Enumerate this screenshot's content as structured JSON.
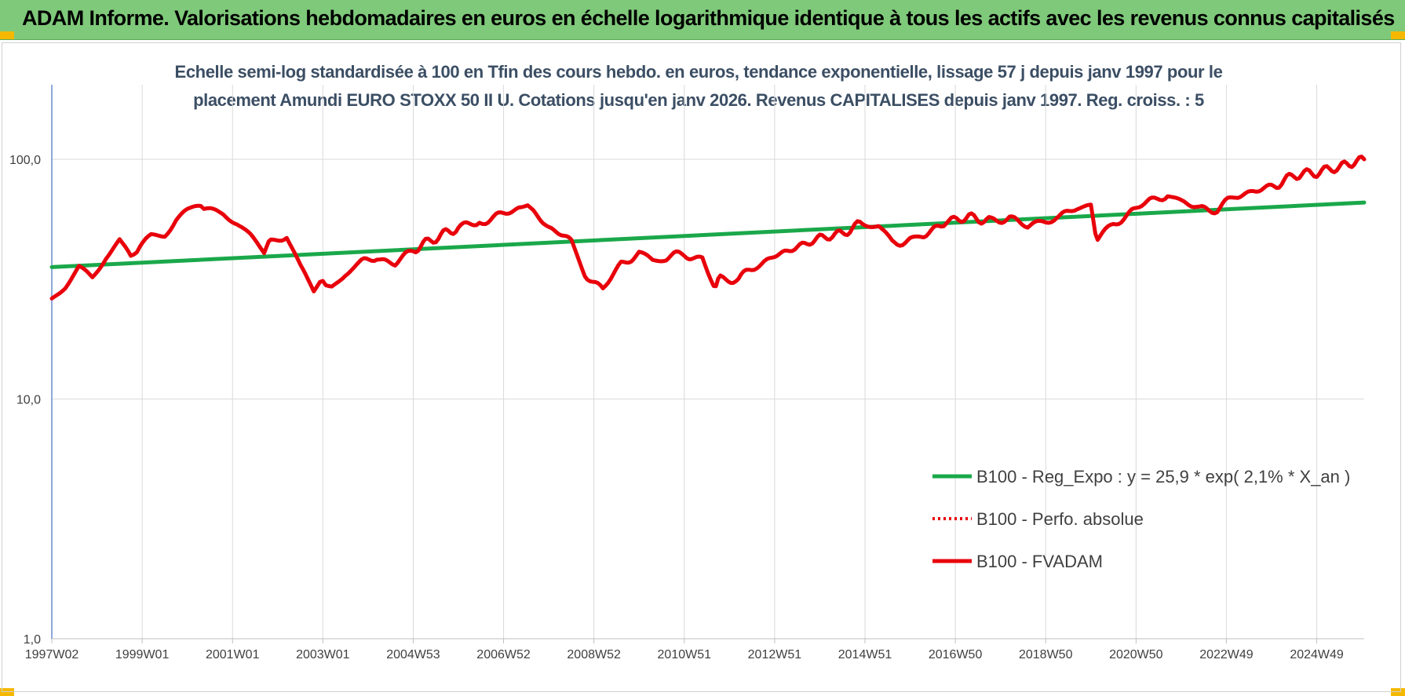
{
  "header": {
    "title": "ADAM Informe. Valorisations hebdomadaires en euros en échelle logarithmique identique à tous les actifs avec les revenus connus capitalisés",
    "background": "#7fc97a"
  },
  "chart_data": {
    "type": "line",
    "title_lines": [
      "Echelle semi-log standardisée à 100 en Tfin des cours hebdo. en euros, tendance exponentielle, lissage 57 j depuis janv 1997 pour le",
      "placement Amundi EURO STOXX 50 II U. Cotations jusqu'en janv 2026. Revenus CAPITALISES depuis janv 1997. Reg. croiss. : 5"
    ],
    "y_scale": "log",
    "ylim": [
      1,
      180
    ],
    "y_ticks": [
      {
        "value": 1,
        "label": "1,0"
      },
      {
        "value": 10,
        "label": "10,0"
      },
      {
        "value": 100,
        "label": "100,0"
      }
    ],
    "xlim": [
      1997.0,
      2026.05
    ],
    "x_ticks": [
      {
        "value": 1997.0,
        "label": "1997W02"
      },
      {
        "value": 1999.0,
        "label": "1999W01"
      },
      {
        "value": 2001.0,
        "label": "2001W01"
      },
      {
        "value": 2003.0,
        "label": "2003W01"
      },
      {
        "value": 2005.0,
        "label": "2004W53"
      },
      {
        "value": 2007.0,
        "label": "2006W52"
      },
      {
        "value": 2009.0,
        "label": "2008W52"
      },
      {
        "value": 2011.0,
        "label": "2010W51"
      },
      {
        "value": 2013.0,
        "label": "2012W51"
      },
      {
        "value": 2015.0,
        "label": "2014W51"
      },
      {
        "value": 2017.0,
        "label": "2016W50"
      },
      {
        "value": 2019.0,
        "label": "2018W50"
      },
      {
        "value": 2021.0,
        "label": "2020W50"
      },
      {
        "value": 2023.0,
        "label": "2022W49"
      },
      {
        "value": 2025.0,
        "label": "2024W49"
      }
    ],
    "grid": "vertical lines at x ticks, horizontal lines at y ticks",
    "legend_position": "bottom-right",
    "series": [
      {
        "name": "B100 - Reg_Expo : y = 25,9 * exp( 2,1% *  X_an )",
        "color": "#1aa84a",
        "style": "solid",
        "x": [
          1997.0,
          2026.05
        ],
        "values": [
          35.5,
          66.0
        ]
      },
      {
        "name": "B100 - Perfo. absolue",
        "color": "#e8000b",
        "style": "dotted",
        "x": [],
        "values": []
      },
      {
        "name": "B100 - FVADAM",
        "color": "#e8000b",
        "style": "solid",
        "x": [
          1997.0,
          1997.3,
          1997.6,
          1997.9,
          1998.2,
          1998.5,
          1998.75,
          1998.95,
          1999.2,
          1999.5,
          1999.75,
          2000.0,
          2000.3,
          2000.5,
          2000.8,
          2001.1,
          2001.4,
          2001.7,
          2001.85,
          2002.2,
          2002.5,
          2002.8,
          2003.0,
          2003.2,
          2003.5,
          2003.8,
          2004.2,
          2004.6,
          2005.0,
          2005.5,
          2006.0,
          2006.4,
          2006.6,
          2007.0,
          2007.4,
          2007.6,
          2008.0,
          2008.5,
          2008.8,
          2009.2,
          2009.6,
          2010.0,
          2010.3,
          2010.6,
          2011.0,
          2011.4,
          2011.65,
          2011.8,
          2012.2,
          2012.6,
          2013.0,
          2013.5,
          2014.0,
          2014.5,
          2015.0,
          2015.3,
          2015.6,
          2016.0,
          2016.3,
          2016.8,
          2017.3,
          2017.8,
          2018.2,
          2018.6,
          2018.95,
          2019.3,
          2019.7,
          2020.0,
          2020.15,
          2020.5,
          2020.9,
          2021.3,
          2021.7,
          2022.0,
          2022.4,
          2022.8,
          2023.2,
          2023.6,
          2024.0,
          2024.5,
          2025.0,
          2025.5,
          2026.05
        ],
        "values": [
          25.5,
          29.5,
          35.5,
          32.5,
          40.0,
          46.0,
          38.0,
          42.0,
          47.5,
          49.0,
          57.0,
          62.0,
          62.5,
          60.0,
          58.5,
          54.0,
          48.0,
          42.0,
          46.0,
          48.0,
          36.0,
          29.0,
          31.0,
          28.5,
          33.0,
          36.5,
          39.0,
          36.5,
          42.0,
          47.0,
          52.0,
          54.0,
          56.0,
          59.0,
          63.0,
          61.0,
          52.0,
          46.0,
          33.5,
          28.5,
          37.0,
          40.0,
          37.5,
          39.0,
          40.0,
          38.5,
          30.0,
          32.0,
          31.5,
          36.0,
          39.5,
          43.0,
          47.0,
          49.0,
          55.0,
          53.0,
          45.0,
          46.0,
          48.0,
          55.0,
          57.5,
          55.0,
          57.5,
          52.0,
          55.5,
          58.5,
          62.0,
          62.0,
          46.0,
          53.0,
          61.0,
          67.0,
          71.5,
          67.0,
          62.0,
          62.0,
          70.0,
          74.0,
          76.0,
          86.0,
          88.0,
          93.0,
          100.0
        ]
      }
    ]
  }
}
